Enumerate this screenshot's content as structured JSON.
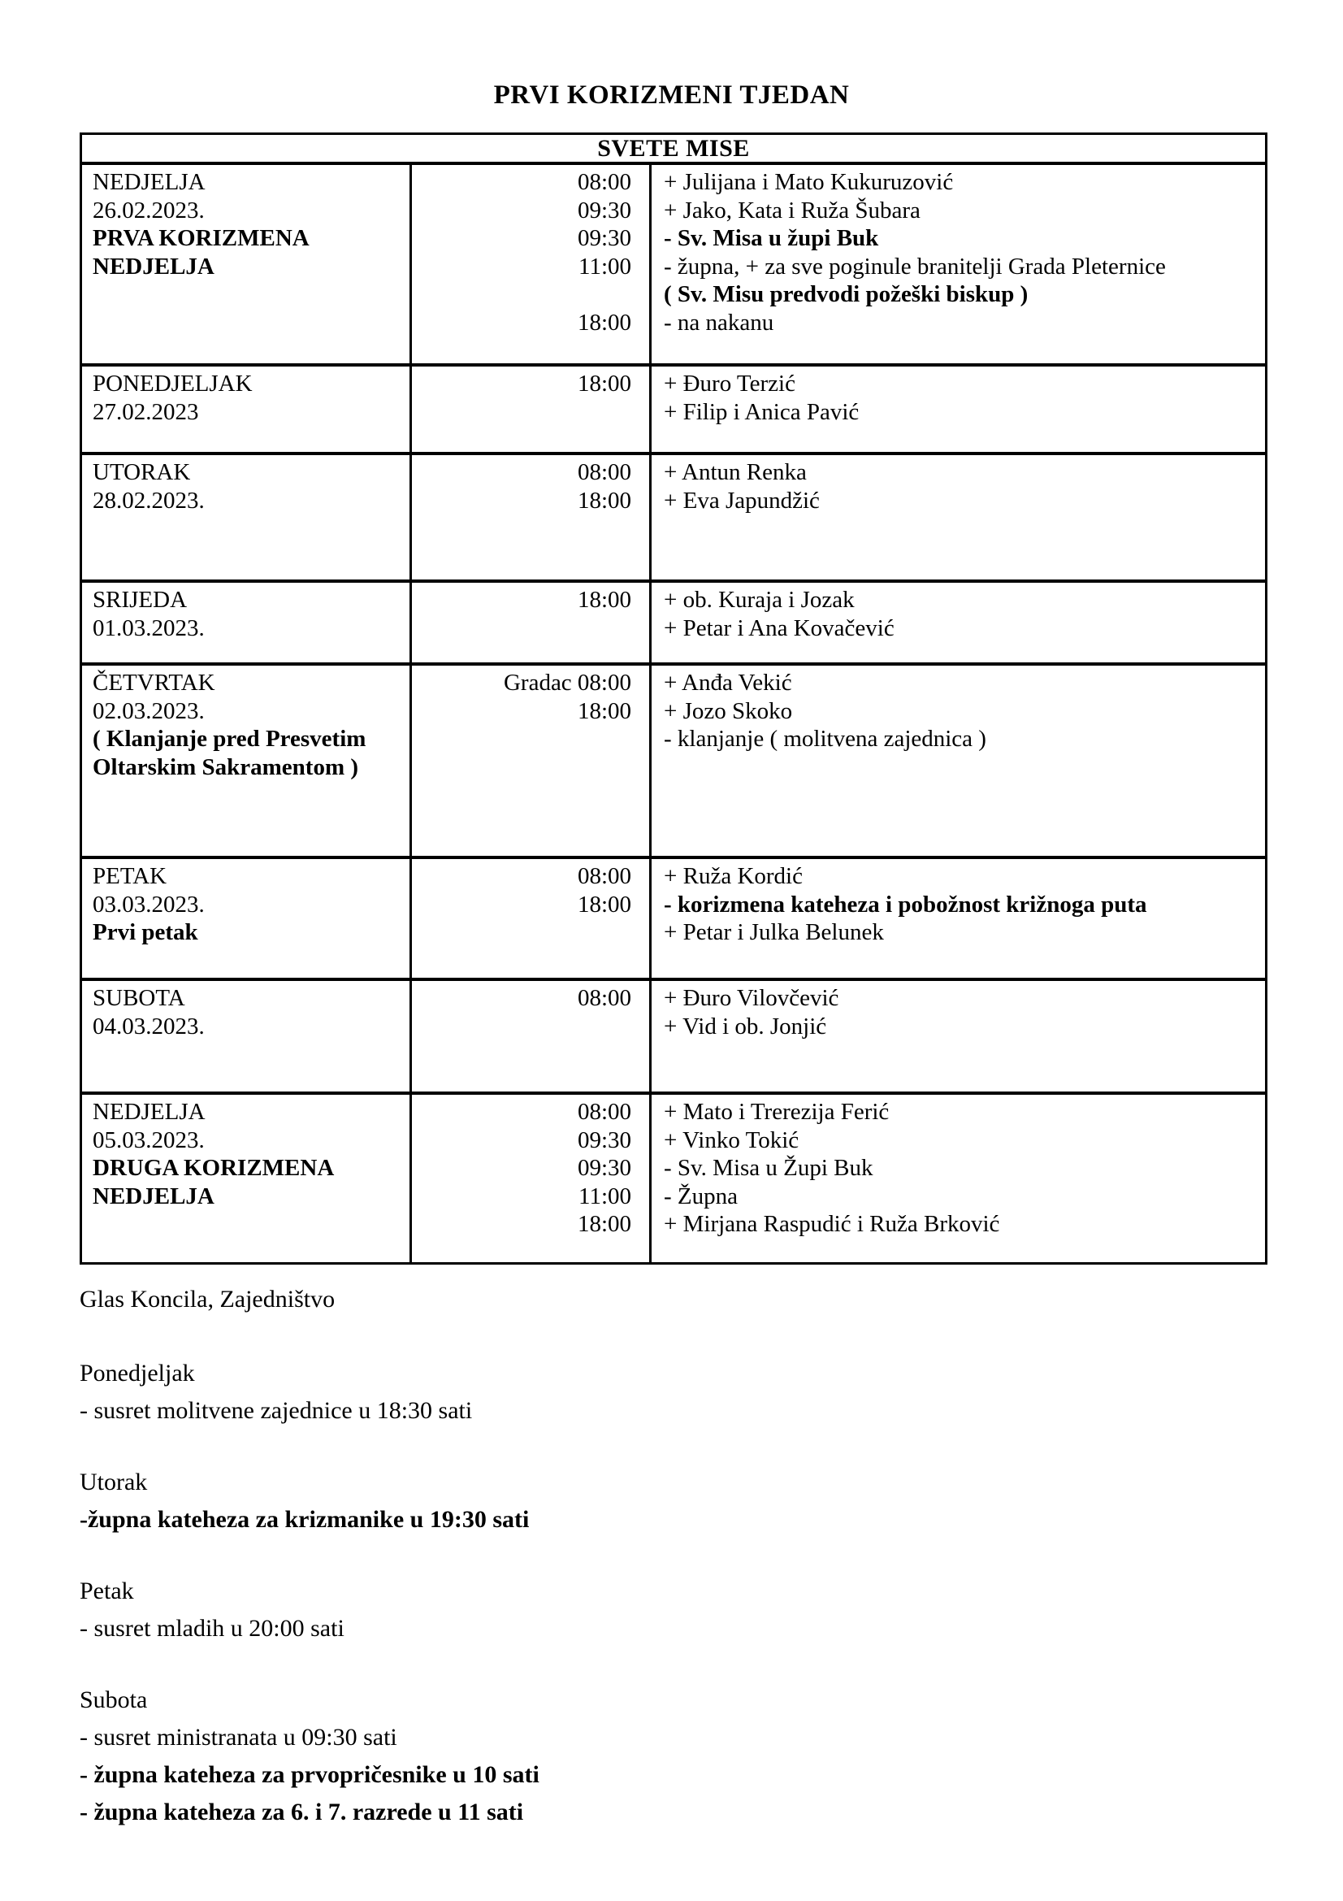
{
  "page": {
    "title": "PRVI KORIZMENI TJEDAN"
  },
  "table": {
    "header": "SVETE MISE",
    "rows": [
      {
        "day": [
          {
            "t": "NEDJELJA",
            "b": 0
          },
          {
            "t": "26.02.2023.",
            "b": 0
          },
          {
            "t": "PRVA KORIZMENA",
            "b": 1
          },
          {
            "t": "NEDJELJA",
            "b": 1
          }
        ],
        "times": [
          {
            "t": "08:00",
            "b": 0
          },
          {
            "t": "09:30",
            "b": 0
          },
          {
            "t": "09:30",
            "b": 0
          },
          {
            "t": "11:00",
            "b": 0
          },
          {
            "t": "",
            "b": 0
          },
          {
            "t": "18:00",
            "b": 0
          }
        ],
        "entries": [
          {
            "t": "+ Julijana i Mato Kukuruzović",
            "b": 0
          },
          {
            "t": "+ Jako, Kata i Ruža Šubara",
            "b": 0
          },
          {
            "t": "- Sv. Misa u župi Buk",
            "b": 1
          },
          {
            "t": "- župna, + za sve poginule branitelji Grada Pleternice",
            "b": 0
          },
          {
            "t": "( Sv. Misu predvodi požeški biskup )",
            "b": 1
          },
          {
            "t": "- na nakanu",
            "b": 0
          }
        ]
      },
      {
        "day": [
          {
            "t": "PONEDJELJAK",
            "b": 0
          },
          {
            "t": "27.02.2023",
            "b": 0
          }
        ],
        "times": [
          {
            "t": "18:00",
            "b": 0
          }
        ],
        "entries": [
          {
            "t": "+ Đuro Terzić",
            "b": 0
          },
          {
            "t": "+ Filip i Anica Pavić",
            "b": 0
          }
        ]
      },
      {
        "day": [
          {
            "t": "UTORAK",
            "b": 0
          },
          {
            "t": "28.02.2023.",
            "b": 0
          }
        ],
        "times": [
          {
            "t": "08:00",
            "b": 0
          },
          {
            "t": "18:00",
            "b": 0
          }
        ],
        "entries": [
          {
            "t": "+ Antun Renka",
            "b": 0
          },
          {
            "t": "+ Eva Japundžić",
            "b": 0
          }
        ]
      },
      {
        "day": [
          {
            "t": "SRIJEDA",
            "b": 0
          },
          {
            "t": "01.03.2023.",
            "b": 0
          }
        ],
        "times": [
          {
            "t": "18:00",
            "b": 0
          }
        ],
        "entries": [
          {
            "t": "+ ob. Kuraja i Jozak",
            "b": 0
          },
          {
            "t": "+ Petar i Ana Kovačević",
            "b": 0
          }
        ]
      },
      {
        "day": [
          {
            "t": "ČETVRTAK",
            "b": 0
          },
          {
            "t": "02.03.2023.",
            "b": 0
          },
          {
            "t": "( Klanjanje pred Presvetim",
            "b": 1
          },
          {
            "t": "Oltarskim Sakramentom )",
            "b": 1
          }
        ],
        "times": [
          {
            "t": "Gradac 08:00",
            "b": 0
          },
          {
            "t": "18:00",
            "b": 0
          }
        ],
        "entries": [
          {
            "t": "+ Anđa Vekić",
            "b": 0
          },
          {
            "t": "+ Jozo Skoko",
            "b": 0
          },
          {
            "t": "- klanjanje ( molitvena zajednica )",
            "b": 0
          }
        ]
      },
      {
        "day": [
          {
            "t": "PETAK",
            "b": 0
          },
          {
            "t": "03.03.2023.",
            "b": 0
          },
          {
            "t": "Prvi petak",
            "b": 1
          }
        ],
        "times": [
          {
            "t": "08:00",
            "b": 0
          },
          {
            "t": "18:00",
            "b": 0
          }
        ],
        "entries": [
          {
            "t": "+ Ruža Kordić",
            "b": 0
          },
          {
            "t": "- korizmena kateheza i pobožnost križnoga puta",
            "b": 1
          },
          {
            "t": "+ Petar i Julka Belunek",
            "b": 0
          }
        ]
      },
      {
        "day": [
          {
            "t": "SUBOTA",
            "b": 0
          },
          {
            "t": "04.03.2023.",
            "b": 0
          }
        ],
        "times": [
          {
            "t": "08:00",
            "b": 0
          }
        ],
        "entries": [
          {
            "t": "+ Đuro Vilovčević",
            "b": 0
          },
          {
            "t": "+ Vid i ob. Jonjić",
            "b": 0
          }
        ]
      },
      {
        "day": [
          {
            "t": "NEDJELJA",
            "b": 0
          },
          {
            "t": "05.03.2023.",
            "b": 0
          },
          {
            "t": "DRUGA KORIZMENA",
            "b": 1
          },
          {
            "t": "NEDJELJA",
            "b": 1
          }
        ],
        "times": [
          {
            "t": "08:00",
            "b": 0
          },
          {
            "t": "09:30",
            "b": 0
          },
          {
            "t": "09:30",
            "b": 0
          },
          {
            "t": "11:00",
            "b": 0
          },
          {
            "t": "18:00",
            "b": 0
          }
        ],
        "entries": [
          {
            "t": "+ Mato i Trerezija Ferić",
            "b": 0
          },
          {
            "t": "+ Vinko Tokić",
            "b": 0
          },
          {
            "t": "- Sv. Misa u Župi Buk",
            "b": 0
          },
          {
            "t": "- Župna",
            "b": 0
          },
          {
            "t": "+ Mirjana Raspudić i Ruža Brković",
            "b": 0
          }
        ]
      }
    ]
  },
  "notes": [
    {
      "t": "Glas Koncila, Zajedništvo",
      "b": 0
    },
    {
      "t": "Ponedjeljak",
      "b": 0
    },
    {
      "t": "- susret molitvene zajednice u 18:30 sati",
      "b": 0
    },
    {
      "t": "Utorak",
      "b": 0
    },
    {
      "t": "-župna kateheza za krizmanike u 19:30 sati",
      "b": 1
    },
    {
      "t": "Petak",
      "b": 0
    },
    {
      "t": "- susret mladih u 20:00 sati",
      "b": 0
    },
    {
      "t": "Subota",
      "b": 0
    },
    {
      "t": "- susret ministranata u 09:30 sati",
      "b": 0
    },
    {
      "t": "- župna kateheza za prvopričesnike u 10 sati",
      "b": 1
    },
    {
      "t": "- župna kateheza za 6. i 7. razrede u 11 sati",
      "b": 1
    }
  ]
}
